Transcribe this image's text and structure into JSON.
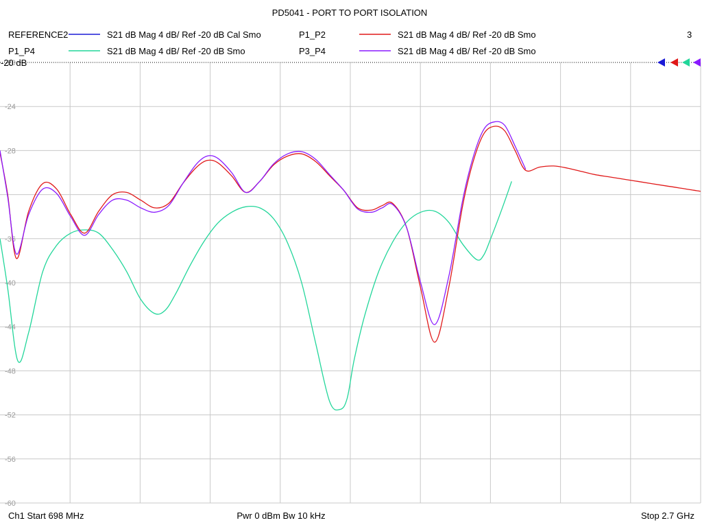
{
  "chart_data": {
    "type": "line",
    "title": "PD5041 - PORT TO PORT ISOLATION",
    "channel_label": "3",
    "ref_label": "-20 dB",
    "xlim": [
      698,
      2700
    ],
    "x_unit": "MHz",
    "ylim": [
      -60,
      -20
    ],
    "y_ticks": [
      -20,
      -24,
      -28,
      -32,
      -36,
      -40,
      -44,
      -48,
      -52,
      -56,
      -60
    ],
    "y_tick_labels": [
      "-20",
      "-24",
      "-28",
      "",
      "-36",
      "-40",
      "-44",
      "-48",
      "-52",
      "-56",
      "-60"
    ],
    "grid": true,
    "series": [
      {
        "name": "REFERENCE2",
        "meas": "S21  dB Mag  4 dB/ Ref -20 dB  Cal Smo",
        "color": "#1a1ad6",
        "x": [],
        "y": []
      },
      {
        "name": "P1_P2",
        "meas": "S21  dB Mag  4 dB/ Ref -20 dB  Smo",
        "color": "#e01818",
        "x": [
          698,
          720,
          745,
          780,
          820,
          860,
          900,
          940,
          980,
          1020,
          1060,
          1100,
          1140,
          1180,
          1220,
          1260,
          1290,
          1320,
          1360,
          1400,
          1440,
          1480,
          1520,
          1560,
          1600,
          1640,
          1680,
          1720,
          1760,
          1790,
          1820,
          1860,
          1900,
          1940,
          1980,
          2020,
          2050,
          2080,
          2110,
          2140,
          2170,
          2200,
          2240,
          2280,
          2320,
          2360,
          2400,
          2440,
          2480,
          2520,
          2560,
          2600,
          2640,
          2680,
          2700
        ],
        "y": [
          -28.2,
          -32,
          -37.8,
          -33.5,
          -31,
          -31.5,
          -33.8,
          -35.5,
          -33.5,
          -32,
          -31.8,
          -32.5,
          -33.2,
          -32.8,
          -31,
          -29.5,
          -28.9,
          -29.1,
          -30.3,
          -31.8,
          -30.8,
          -29.3,
          -28.5,
          -28.3,
          -29,
          -30.3,
          -31.6,
          -33.2,
          -33.4,
          -33,
          -32.8,
          -35,
          -40.5,
          -45.4,
          -40.5,
          -33,
          -29,
          -26.5,
          -25.8,
          -26.2,
          -28,
          -29.8,
          -29.5,
          -29.4,
          -29.6,
          -29.9,
          -30.2,
          -30.4,
          -30.6,
          -30.8,
          -31,
          -31.2,
          -31.4,
          -31.6,
          -31.7
        ]
      },
      {
        "name": "P1_P4",
        "meas": "S21  dB Mag  4 dB/ Ref -20 dB  Smo",
        "color": "#22d69a",
        "x": [
          698,
          720,
          749,
          780,
          820,
          860,
          900,
          940,
          980,
          1020,
          1060,
          1100,
          1140,
          1170,
          1200,
          1240,
          1280,
          1320,
          1360,
          1400,
          1440,
          1480,
          1520,
          1560,
          1600,
          1640,
          1670,
          1690,
          1710,
          1740,
          1780,
          1820,
          1860,
          1900,
          1940,
          1980,
          2020,
          2060,
          2080,
          2100,
          2130,
          2160
        ],
        "y": [
          -36,
          -40.5,
          -47.1,
          -44.5,
          -39,
          -36.6,
          -35.5,
          -35.2,
          -35.5,
          -37,
          -39,
          -41.5,
          -42.8,
          -42.5,
          -41,
          -38.5,
          -36.3,
          -34.6,
          -33.6,
          -33.1,
          -33.2,
          -34.2,
          -36.4,
          -40,
          -45.5,
          -50.8,
          -51.5,
          -50.5,
          -47,
          -43,
          -39,
          -36.3,
          -34.5,
          -33.6,
          -33.5,
          -34.5,
          -36.5,
          -37.9,
          -37.5,
          -36,
          -33.5,
          -30.8
        ]
      },
      {
        "name": "P3_P4",
        "meas": "S21  dB Mag  4 dB/ Ref -20 dB  Smo",
        "color": "#8a1aff",
        "x": [
          698,
          720,
          745,
          780,
          820,
          860,
          900,
          940,
          980,
          1020,
          1060,
          1100,
          1140,
          1180,
          1220,
          1260,
          1290,
          1320,
          1360,
          1400,
          1440,
          1480,
          1520,
          1560,
          1600,
          1640,
          1680,
          1720,
          1760,
          1790,
          1820,
          1860,
          1900,
          1940,
          1980,
          2020,
          2050,
          2080,
          2110,
          2140,
          2170,
          2200
        ],
        "y": [
          -28,
          -32.2,
          -37.4,
          -33.8,
          -31.5,
          -31.9,
          -34,
          -35.7,
          -33.8,
          -32.5,
          -32.5,
          -33.2,
          -33.6,
          -33,
          -31,
          -29.2,
          -28.5,
          -28.7,
          -30,
          -31.8,
          -30.8,
          -29.2,
          -28.3,
          -28.1,
          -28.8,
          -30.2,
          -31.6,
          -33.3,
          -33.6,
          -33.2,
          -32.9,
          -35,
          -40,
          -43.8,
          -39.5,
          -32.5,
          -28.6,
          -26.1,
          -25.4,
          -25.7,
          -27.6,
          -29.7
        ]
      }
    ],
    "footer": {
      "left": "Ch1  Start  698 MHz",
      "center": "Pwr  0 dBm  Bw  10 kHz",
      "right": "Stop  2.7 GHz"
    }
  }
}
